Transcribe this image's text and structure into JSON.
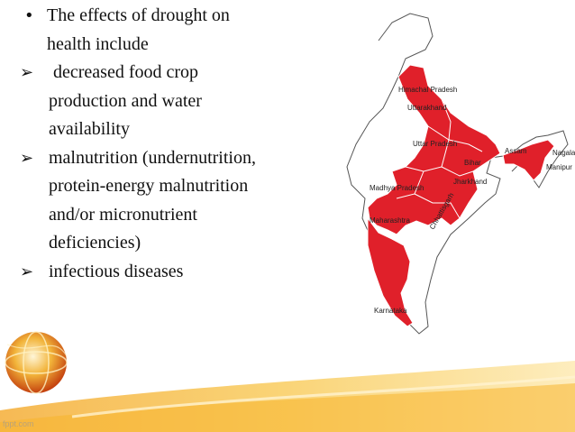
{
  "bullets": [
    {
      "marker": "•",
      "lines": [
        "The effects of drought on",
        "health include"
      ],
      "kind": "dot"
    },
    {
      "marker": "➢",
      "lines": [
        " decreased food crop",
        "production and water",
        "availability"
      ],
      "kind": "arrow"
    },
    {
      "marker": "➢",
      "lines": [
        "malnutrition (undernutrition,",
        "protein-energy malnutrition",
        "and/or micronutrient",
        "deficiencies)"
      ],
      "kind": "arrow"
    },
    {
      "marker": "➢",
      "lines": [
        "infectious diseases"
      ],
      "kind": "arrow"
    }
  ],
  "map": {
    "states": [
      "Himachal Pradesh",
      "Uttarakhand",
      "Uttar Pradesh",
      "Bihar",
      "Jharkhand",
      "Madhya Pradesh",
      "Chhattisgarh",
      "Maharashtra",
      "Karnataka",
      "Assam",
      "Nagaland",
      "Manipur"
    ],
    "highlight_color": "#e0202a"
  },
  "footer": "fppt.com"
}
